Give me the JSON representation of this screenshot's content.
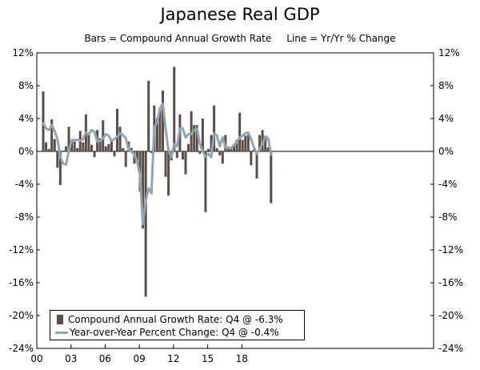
{
  "title": "Japanese Real GDP",
  "subtitle": "Bars = Compound Annual Growth Rate     Line = Yr/Yr % Change",
  "colors": {
    "bar": "#5b4c44",
    "line": "#8fa5b6",
    "axis": "#000000"
  },
  "legend": {
    "bar_label": "Compound Annual Growth Rate: Q4 @ -6.3%",
    "line_label": "Year-over-Year Percent Change: Q4 @ -0.4%"
  },
  "chart_data": {
    "type": "bar+line",
    "title": "Japanese Real GDP",
    "ylim": [
      -24,
      12
    ],
    "y_ticks": [
      12,
      8,
      4,
      0,
      -4,
      -8,
      -12,
      -16,
      -20,
      -24
    ],
    "y_tick_labels": [
      "12%",
      "8%",
      "4%",
      "0%",
      "-4%",
      "-8%",
      "-12%",
      "-16%",
      "-20%",
      "-24%"
    ],
    "x_tick_labels": [
      "00",
      "03",
      "06",
      "09",
      "12",
      "15",
      "18"
    ],
    "x_tick_quarter_index": [
      0,
      12,
      24,
      36,
      48,
      60,
      72
    ],
    "start": "2000 Q1",
    "series": [
      {
        "name": "Compound Annual Growth Rate",
        "values": [
          7.3,
          1.1,
          0.3,
          3.9,
          1.5,
          -2.0,
          -4.1,
          0.1,
          0.6,
          3.0,
          1.2,
          1.2,
          0.4,
          2.5,
          1.1,
          4.5,
          2.2,
          0.8,
          -0.7,
          2.6,
          1.6,
          3.8,
          0.6,
          0.9,
          1.2,
          -0.6,
          5.2,
          3.0,
          0.4,
          -1.9,
          1.2,
          0.4,
          -1.5,
          -1.1,
          -4.9,
          -9.4,
          -17.7,
          8.6,
          -0.2,
          5.6,
          4.0,
          5.3,
          7.4,
          -3.1,
          -5.4,
          -1.1,
          10.3,
          -0.8,
          4.5,
          -1.0,
          -2.8,
          0.9,
          4.9,
          3.2,
          3.2,
          -0.3,
          4.0,
          -7.4,
          0.3,
          2.0,
          5.6,
          0.4,
          -0.5,
          -1.5,
          2.0,
          0.6,
          0.5,
          0.7,
          1.4,
          4.7,
          1.4,
          1.9,
          2.0,
          -1.7,
          0.2,
          -3.3,
          2.0,
          2.6,
          1.9,
          0.5,
          -6.3
        ]
      },
      {
        "name": "Year-over-Year Percent Change",
        "values": [
          3.4,
          2.8,
          2.6,
          3.2,
          2.5,
          1.5,
          -0.7,
          -1.5,
          -1.6,
          0.0,
          1.4,
          1.4,
          1.4,
          1.3,
          1.5,
          2.3,
          2.1,
          2.6,
          2.4,
          1.2,
          1.3,
          1.6,
          2.1,
          1.9,
          1.3,
          1.5,
          1.8,
          2.2,
          2.0,
          1.6,
          0.2,
          0.0,
          -0.4,
          -1.2,
          -2.9,
          -8.9,
          -6.0,
          -4.5,
          -5.1,
          2.9,
          3.5,
          5.3,
          5.8,
          2.7,
          0.1,
          -0.7,
          0.9,
          0.6,
          2.8,
          2.8,
          1.7,
          2.1,
          2.1,
          2.6,
          2.8,
          0.9,
          0.0,
          -0.6,
          -0.3,
          -0.7,
          2.2,
          1.9,
          0.6,
          1.7,
          0.5,
          0.4,
          0.4,
          0.8,
          1.1,
          1.7,
          1.9,
          2.2,
          2.3,
          1.5,
          0.5,
          -0.3,
          0.3,
          0.9,
          1.8,
          1.6,
          -0.4
        ]
      }
    ]
  }
}
